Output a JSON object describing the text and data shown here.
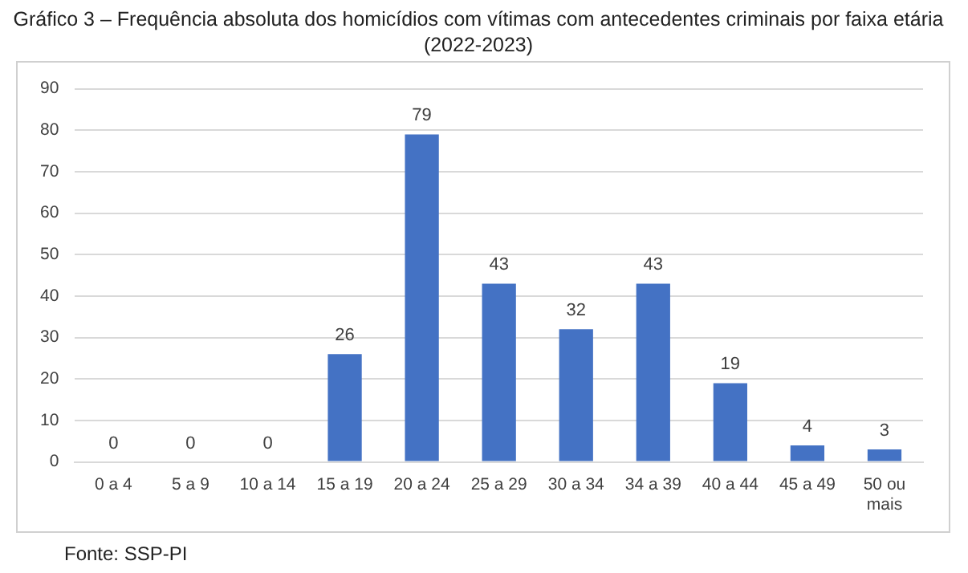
{
  "chart_data": {
    "type": "bar",
    "title": "Gráfico 3 – Frequência absoluta dos homicídios com vítimas com antecedentes criminais por faixa etária (2022-2023)",
    "categories": [
      "0 a 4",
      "5 a 9",
      "10 a 14",
      "15 a 19",
      "20 a 24",
      "25 a 29",
      "30 a 34",
      "34 a 39",
      "40 a 44",
      "45 a 49",
      "50 ou mais"
    ],
    "values": [
      0,
      0,
      0,
      26,
      79,
      43,
      32,
      43,
      19,
      4,
      3
    ],
    "color": "#4472c4",
    "ylim": [
      0,
      90
    ],
    "yticks": [
      0,
      10,
      20,
      30,
      40,
      50,
      60,
      70,
      80,
      90
    ],
    "grid": "y",
    "legend": false,
    "data_labels": true,
    "annotations": [
      "Fonte: SSP-PI"
    ]
  }
}
